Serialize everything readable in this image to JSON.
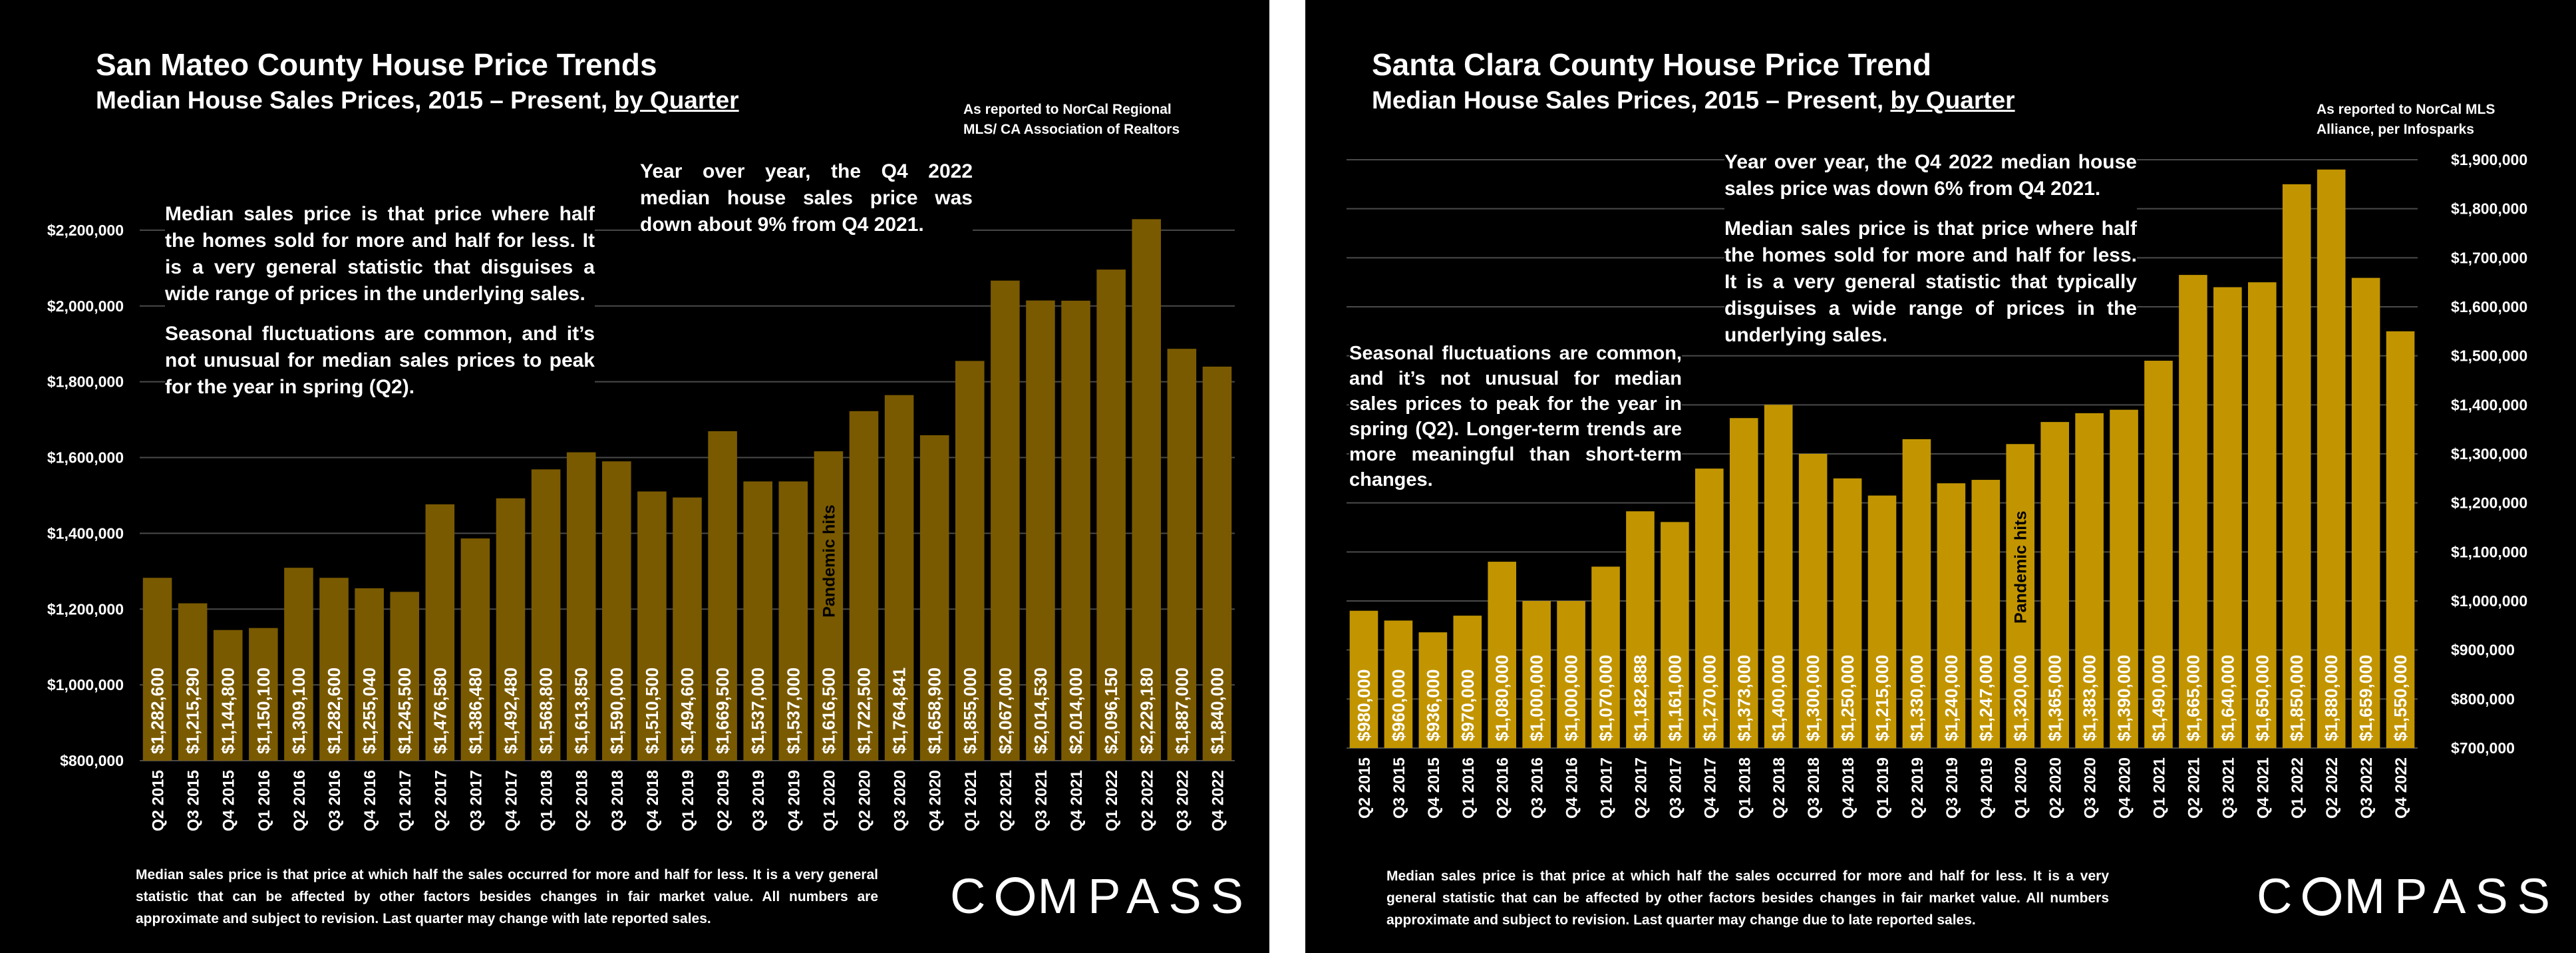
{
  "chart_data": [
    {
      "type": "bar",
      "title": "San Mateo County House Price Trends",
      "subtitle_prefix": "Median House Sales Prices, 2015 – Present, ",
      "subtitle_link": "by Quarter",
      "source_lines": [
        "As reported to NorCal Regional",
        "MLS/ CA Association of Realtors"
      ],
      "bar_color": "#7A5A00",
      "ylim": [
        800000,
        2300000
      ],
      "yticks": [
        800000,
        1000000,
        1200000,
        1400000,
        1600000,
        1800000,
        2000000,
        2200000
      ],
      "ytick_labels": [
        "$800,000",
        "$1,000,000",
        "$1,200,000",
        "$1,400,000",
        "$1,600,000",
        "$1,800,000",
        "$2,000,000",
        "$2,200,000"
      ],
      "y_axis_side": "left",
      "grid": true,
      "categories": [
        "Q2 2015",
        "Q3 2015",
        "Q4 2015",
        "Q1 2016",
        "Q2 2016",
        "Q3 2016",
        "Q4 2016",
        "Q1 2017",
        "Q2 2017",
        "Q3 2017",
        "Q4 2017",
        "Q1 2018",
        "Q2 2018",
        "Q3 2018",
        "Q4 2018",
        "Q1 2019",
        "Q2 2019",
        "Q3 2019",
        "Q4 2019",
        "Q1 2020",
        "Q2 2020",
        "Q3 2020",
        "Q4 2020",
        "Q1 2021",
        "Q2 2021",
        "Q3 2021",
        "Q4 2021",
        "Q1 2022",
        "Q2 2022",
        "Q3 2022",
        "Q4 2022"
      ],
      "values": [
        1282600,
        1215290,
        1144800,
        1150100,
        1309100,
        1282600,
        1255040,
        1245500,
        1476580,
        1386480,
        1492480,
        1568800,
        1613850,
        1590000,
        1510500,
        1494600,
        1669500,
        1537000,
        1537000,
        1616500,
        1722500,
        1764841,
        1658900,
        1855000,
        2067000,
        2014530,
        2014000,
        2096150,
        2229180,
        1887000,
        1840000
      ],
      "value_labels": [
        "$1,282,600",
        "$1,215,290",
        "$1,144,800",
        "$1,150,100",
        "$1,309,100",
        "$1,282,600",
        "$1,255,040",
        "$1,245,500",
        "$1,476,580",
        "$1,386,480",
        "$1,492,480",
        "$1,568,800",
        "$1,613,850",
        "$1,590,000",
        "$1,510,500",
        "$1,494,600",
        "$1,669,500",
        "$1,537,000",
        "$1,537,000",
        "$1,616,500",
        "$1,722,500",
        "$1,764,841",
        "$1,658,900",
        "$1,855,000",
        "$2,067,000",
        "$2,014,530",
        "$2,014,000",
        "$2,096,150",
        "$2,229,180",
        "$1,887,000",
        "$1,840,000"
      ],
      "annotation": {
        "text": "Pandemic hits",
        "category": "Q1 2020"
      },
      "text_boxes": [
        [
          "Median sales price is that price where half the homes sold for more and half for less. It is a very general statistic that disguises a wide range of prices in the underlying sales.",
          "Seasonal fluctuations are common, and it’s not unusual for median sales prices to peak for the year in spring (Q2)."
        ],
        [
          "Year over year, the Q4 2022 median house sales price was down about 9% from Q4 2021."
        ]
      ],
      "footnote": "Median sales price is that price at which half the sales occurred for more and half for less. It is a very general statistic that can be affected by other factors besides changes in fair market value. All numbers are approximate and subject to revision. Last quarter may change with late reported sales.",
      "logo": "COMPASS"
    },
    {
      "type": "bar",
      "title": "Santa Clara County House Price Trend",
      "subtitle_prefix": "Median House Sales Prices, 2015 – Present, ",
      "subtitle_link": "by Quarter",
      "source_lines": [
        "As reported to NorCal MLS",
        "Alliance, per Infosparks"
      ],
      "bar_color": "#C29500",
      "ylim": [
        700000,
        1900000
      ],
      "yticks": [
        700000,
        800000,
        900000,
        1000000,
        1100000,
        1200000,
        1300000,
        1400000,
        1500000,
        1600000,
        1700000,
        1800000,
        1900000
      ],
      "ytick_labels": [
        "$700,000",
        "$800,000",
        "$900,000",
        "$1,000,000",
        "$1,100,000",
        "$1,200,000",
        "$1,300,000",
        "$1,400,000",
        "$1,500,000",
        "$1,600,000",
        "$1,700,000",
        "$1,800,000",
        "$1,900,000"
      ],
      "y_axis_side": "right",
      "grid": true,
      "categories": [
        "Q2 2015",
        "Q3 2015",
        "Q4 2015",
        "Q1 2016",
        "Q2 2016",
        "Q3 2016",
        "Q4 2016",
        "Q1 2017",
        "Q2 2017",
        "Q3 2017",
        "Q4 2017",
        "Q1 2018",
        "Q2 2018",
        "Q3 2018",
        "Q4 2018",
        "Q1 2019",
        "Q2 2019",
        "Q3 2019",
        "Q4 2019",
        "Q1 2020",
        "Q2 2020",
        "Q3 2020",
        "Q4 2020",
        "Q1 2021",
        "Q2 2021",
        "Q3 2021",
        "Q4 2021",
        "Q1 2022",
        "Q2 2022",
        "Q3 2022",
        "Q4 2022"
      ],
      "values": [
        980000,
        960000,
        936000,
        970000,
        1080000,
        1000000,
        1000000,
        1070000,
        1182888,
        1161000,
        1270000,
        1373000,
        1400000,
        1300000,
        1250000,
        1215000,
        1330000,
        1240000,
        1247000,
        1320000,
        1365000,
        1383000,
        1390000,
        1490000,
        1665000,
        1640000,
        1650000,
        1850000,
        1880000,
        1659000,
        1550000
      ],
      "value_labels": [
        "$980,000",
        "$960,000",
        "$936,000",
        "$970,000",
        "$1,080,000",
        "$1,000,000",
        "$1,000,000",
        "$1,070,000",
        "$1,182,888",
        "$1,161,000",
        "$1,270,000",
        "$1,373,000",
        "$1,400,000",
        "$1,300,000",
        "$1,250,000",
        "$1,215,000",
        "$1,330,000",
        "$1,240,000",
        "$1,247,000",
        "$1,320,000",
        "$1,365,000",
        "$1,383,000",
        "$1,390,000",
        "$1,490,000",
        "$1,665,000",
        "$1,640,000",
        "$1,650,000",
        "$1,850,000",
        "$1,880,000",
        "$1,659,000",
        "$1,550,000"
      ],
      "annotation": {
        "text": "Pandemic hits",
        "category": "Q1 2020"
      },
      "text_boxes": [
        [
          "Year over year, the Q4 2022 median house sales price was down 6% from Q4 2021.",
          "Median sales price is that price where half the homes sold for more and half for less. It is a very general statistic that typically disguises a wide range of prices in the underlying sales."
        ],
        [
          "Seasonal fluctuations are common, and it’s not unusual for median sales prices to peak for the year in spring (Q2). Longer-term trends are more meaningful than short-term changes."
        ]
      ],
      "footnote": "Median sales price is that price at which half the sales occurred for more and half for less. It is a very general statistic that can be affected by other factors besides changes in fair market value. All numbers approximate and subject to revision. Last quarter may change due to late reported sales.",
      "logo": "COMPASS"
    }
  ]
}
